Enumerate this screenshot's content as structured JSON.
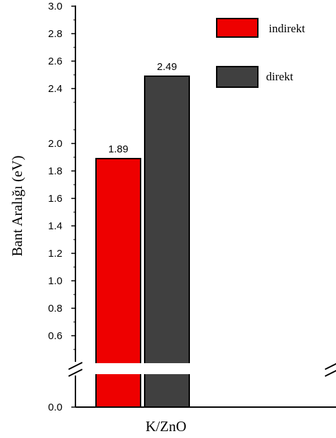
{
  "chart_data": {
    "type": "bar",
    "categories": [
      "K/ZnO"
    ],
    "series": [
      {
        "name": "indirekt",
        "values": [
          1.89
        ],
        "color": "#ee0000",
        "data_label": "1.89"
      },
      {
        "name": "direkt",
        "values": [
          2.49
        ],
        "color": "#404040",
        "data_label": "2.49"
      }
    ],
    "xlabel": "K/ZnO",
    "ylabel": "Bant Aralığı (eV)",
    "y_axis_break": true,
    "y_ticks_upper": [
      {
        "value": 0.6,
        "label": "0.6"
      },
      {
        "value": 0.8,
        "label": "0.8"
      },
      {
        "value": 1.0,
        "label": "1.0"
      },
      {
        "value": 1.2,
        "label": "1.2"
      },
      {
        "value": 1.4,
        "label": "1.4"
      },
      {
        "value": 1.6,
        "label": "1.6"
      },
      {
        "value": 1.8,
        "label": "1.8"
      },
      {
        "value": 2.0,
        "label": "2.0"
      },
      {
        "value": 2.4,
        "label": "2.4"
      },
      {
        "value": 2.6,
        "label": "2.6"
      },
      {
        "value": 2.8,
        "label": "2.8"
      },
      {
        "value": 3.0,
        "label": "3.0"
      }
    ],
    "y_ticks_lower": [
      {
        "value": 0.0,
        "label": "0.0"
      }
    ],
    "ylim": [
      0,
      3.0
    ],
    "grid": false,
    "legend": "top-right"
  }
}
